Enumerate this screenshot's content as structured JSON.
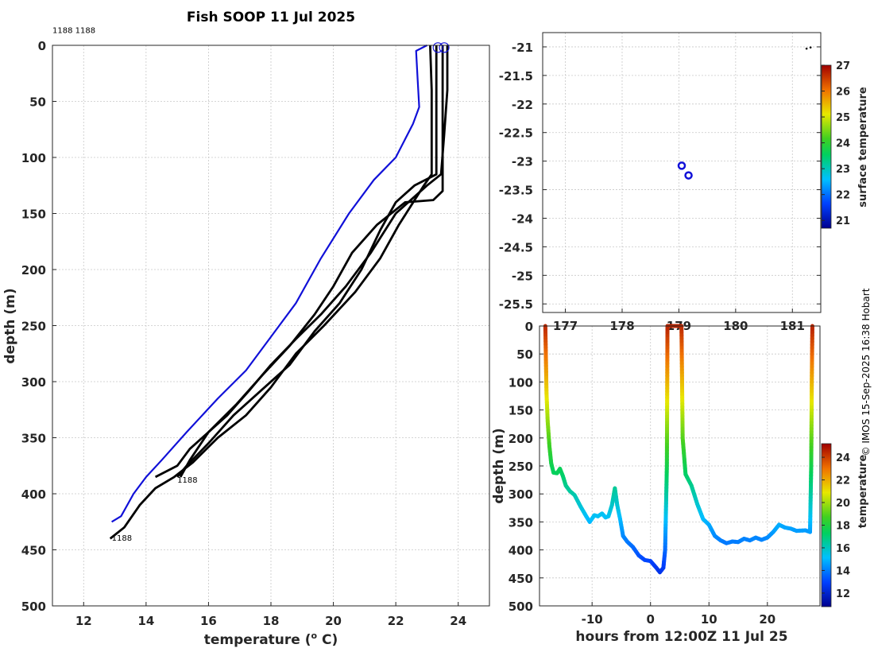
{
  "title": "Fish SOOP 11 Jul 2025",
  "credit": "© IMOS 15-Sep-2025 16:38 Hobart",
  "chart_data": [
    {
      "id": "profile",
      "type": "line",
      "title": "Fish SOOP 11 Jul 2025",
      "xlabel": "temperature (",
      "xlabel_sup": "o",
      "xlabel_tail": " C)",
      "ylabel": "depth (m)",
      "xlim": [
        11,
        25
      ],
      "ylim": [
        0,
        500
      ],
      "y_reversed": true,
      "xticks": [
        12,
        14,
        16,
        18,
        20,
        22,
        24
      ],
      "yticks": [
        0,
        50,
        100,
        150,
        200,
        250,
        300,
        350,
        400,
        450,
        500
      ],
      "grid": true,
      "annotations": [
        {
          "text": "1188 1188",
          "x": 11,
          "y": -11
        },
        {
          "text": "1188",
          "x": 15.0,
          "y": 390
        },
        {
          "text": "1188",
          "x": 12.9,
          "y": 442
        }
      ],
      "markers": [
        {
          "shape": "circle",
          "x": 23.35,
          "y": 2
        },
        {
          "shape": "circle",
          "x": 23.55,
          "y": 2
        }
      ],
      "series": [
        {
          "name": "blue profile",
          "color": "#1010d8",
          "points": [
            [
              23.0,
              0
            ],
            [
              22.65,
              5
            ],
            [
              22.7,
              30
            ],
            [
              22.75,
              55
            ],
            [
              22.55,
              70
            ],
            [
              22.0,
              100
            ],
            [
              21.3,
              120
            ],
            [
              20.5,
              150
            ],
            [
              19.6,
              190
            ],
            [
              18.8,
              230
            ],
            [
              18.0,
              260
            ],
            [
              17.2,
              290
            ],
            [
              16.3,
              315
            ],
            [
              15.3,
              345
            ],
            [
              14.5,
              370
            ],
            [
              14.0,
              385
            ],
            [
              13.6,
              400
            ],
            [
              13.2,
              420
            ],
            [
              12.9,
              425
            ]
          ]
        },
        {
          "name": "cast 1",
          "color": "#000000",
          "points": [
            [
              23.1,
              0
            ],
            [
              23.15,
              40
            ],
            [
              23.15,
              80
            ],
            [
              23.15,
              115
            ],
            [
              22.9,
              125
            ],
            [
              22.1,
              160
            ],
            [
              21.5,
              190
            ],
            [
              20.7,
              220
            ],
            [
              19.7,
              250
            ],
            [
              18.8,
              275
            ],
            [
              18.0,
              305
            ],
            [
              17.2,
              330
            ],
            [
              16.3,
              350
            ],
            [
              15.5,
              372
            ],
            [
              14.9,
              385
            ],
            [
              14.3,
              395
            ],
            [
              13.8,
              410
            ],
            [
              13.3,
              430
            ],
            [
              12.85,
              440
            ]
          ]
        },
        {
          "name": "cast 2",
          "color": "#000000",
          "points": [
            [
              23.3,
              0
            ],
            [
              23.3,
              60
            ],
            [
              23.3,
              115
            ],
            [
              22.6,
              125
            ],
            [
              22.0,
              140
            ],
            [
              21.5,
              165
            ],
            [
              20.9,
              200
            ],
            [
              20.2,
              230
            ],
            [
              19.4,
              255
            ],
            [
              18.6,
              285
            ],
            [
              17.6,
              310
            ],
            [
              16.8,
              330
            ],
            [
              16.0,
              355
            ],
            [
              15.3,
              375
            ],
            [
              15.0,
              385
            ]
          ]
        },
        {
          "name": "cast 3",
          "color": "#000000",
          "points": [
            [
              23.5,
              0
            ],
            [
              23.5,
              60
            ],
            [
              23.5,
              130
            ],
            [
              23.2,
              138
            ],
            [
              22.3,
              140
            ],
            [
              21.4,
              160
            ],
            [
              20.6,
              185
            ],
            [
              20.0,
              215
            ],
            [
              19.4,
              240
            ],
            [
              18.6,
              268
            ],
            [
              17.7,
              295
            ],
            [
              16.9,
              320
            ],
            [
              16.0,
              345
            ],
            [
              15.4,
              370
            ],
            [
              15.1,
              385
            ]
          ]
        },
        {
          "name": "cast 4",
          "color": "#000000",
          "points": [
            [
              23.65,
              0
            ],
            [
              23.65,
              40
            ],
            [
              23.55,
              80
            ],
            [
              23.45,
              115
            ],
            [
              23.0,
              125
            ],
            [
              22.0,
              150
            ],
            [
              21.2,
              185
            ],
            [
              20.4,
              215
            ],
            [
              19.6,
              240
            ],
            [
              18.8,
              262
            ],
            [
              18.0,
              285
            ],
            [
              17.3,
              308
            ],
            [
              16.6,
              330
            ],
            [
              16.0,
              345
            ],
            [
              15.4,
              360
            ],
            [
              15.0,
              375
            ],
            [
              14.3,
              385
            ]
          ]
        }
      ]
    },
    {
      "id": "map",
      "type": "scatter",
      "xlim": [
        176.6,
        181.5
      ],
      "ylim": [
        -25.65,
        -20.75
      ],
      "xticks": [
        177,
        178,
        179,
        180,
        181
      ],
      "xtick_labels": [
        "177",
        "178",
        "179",
        "180",
        "181"
      ],
      "yticks": [
        -21,
        -21.5,
        -22,
        -22.5,
        -23,
        -23.5,
        -24,
        -24.5,
        -25,
        -25.5
      ],
      "ytick_labels": [
        "-21",
        "-21.5",
        "-22",
        "-22.5",
        "-23",
        "-23.5",
        "-24",
        "-24.5",
        "-25",
        "-25.5"
      ],
      "grid": true,
      "points": [
        {
          "lon": 179.05,
          "lat": -23.08,
          "color": "#1010d8"
        },
        {
          "lon": 179.17,
          "lat": -23.25,
          "color": "#1010d8"
        }
      ],
      "dots": [
        {
          "lon": 181.25,
          "lat": -21.03
        },
        {
          "lon": 181.32,
          "lat": -21.01
        }
      ],
      "colorbar": {
        "label": "surface temperature",
        "range": [
          20.7,
          27
        ],
        "ticks": [
          21,
          22,
          23,
          24,
          25,
          26,
          27
        ]
      }
    },
    {
      "id": "timeseries",
      "type": "scatter",
      "xlabel": "hours from 12:00Z 11 Jul 25",
      "ylabel": "depth (m)",
      "xlim": [
        -19,
        29
      ],
      "ylim": [
        0,
        500
      ],
      "y_reversed": true,
      "xticks": [
        -10,
        0,
        10,
        20
      ],
      "xtick_labels": [
        "-10",
        "0",
        "10",
        "20"
      ],
      "yticks": [
        0,
        50,
        100,
        150,
        200,
        250,
        300,
        350,
        400,
        450,
        500
      ],
      "grid": true,
      "track": [
        [
          -18.0,
          0
        ],
        [
          -17.9,
          60
        ],
        [
          -17.8,
          120
        ],
        [
          -17.6,
          170
        ],
        [
          -17.3,
          215
        ],
        [
          -17.0,
          245
        ],
        [
          -16.6,
          262
        ],
        [
          -16.0,
          263
        ],
        [
          -15.5,
          255
        ],
        [
          -15.0,
          268
        ],
        [
          -14.5,
          285
        ],
        [
          -13.8,
          295
        ],
        [
          -13.0,
          302
        ],
        [
          -12.0,
          322
        ],
        [
          -11.0,
          340
        ],
        [
          -10.4,
          350
        ],
        [
          -9.6,
          338
        ],
        [
          -9.0,
          340
        ],
        [
          -8.3,
          335
        ],
        [
          -7.7,
          342
        ],
        [
          -7.2,
          340
        ],
        [
          -6.6,
          320
        ],
        [
          -6.1,
          290
        ],
        [
          -5.7,
          320
        ],
        [
          -5.2,
          345
        ],
        [
          -4.7,
          375
        ],
        [
          -4.0,
          385
        ],
        [
          -3.0,
          395
        ],
        [
          -2.0,
          410
        ],
        [
          -1.0,
          418
        ],
        [
          0.0,
          420
        ],
        [
          1.0,
          432
        ],
        [
          1.6,
          440
        ],
        [
          2.2,
          432
        ],
        [
          2.5,
          400
        ],
        [
          2.8,
          250
        ],
        [
          2.9,
          0
        ],
        [
          5.3,
          0
        ],
        [
          5.4,
          100
        ],
        [
          5.5,
          200
        ],
        [
          6.0,
          265
        ],
        [
          7.0,
          285
        ],
        [
          8.0,
          318
        ],
        [
          9.0,
          345
        ],
        [
          10.0,
          355
        ],
        [
          11.0,
          375
        ],
        [
          12.0,
          383
        ],
        [
          13.0,
          388
        ],
        [
          14.0,
          385
        ],
        [
          15.0,
          386
        ],
        [
          16.0,
          380
        ],
        [
          17.0,
          383
        ],
        [
          18.0,
          378
        ],
        [
          19.0,
          382
        ],
        [
          20.0,
          378
        ],
        [
          21.0,
          368
        ],
        [
          22.0,
          355
        ],
        [
          23.0,
          360
        ],
        [
          24.0,
          362
        ],
        [
          25.0,
          366
        ],
        [
          26.5,
          365
        ],
        [
          27.3,
          368
        ],
        [
          27.5,
          250
        ],
        [
          27.6,
          100
        ],
        [
          27.7,
          0
        ]
      ],
      "colorbar": {
        "label": "temperature",
        "range": [
          10.8,
          25.2
        ],
        "ticks": [
          12,
          14,
          16,
          18,
          20,
          22,
          24
        ]
      }
    }
  ]
}
